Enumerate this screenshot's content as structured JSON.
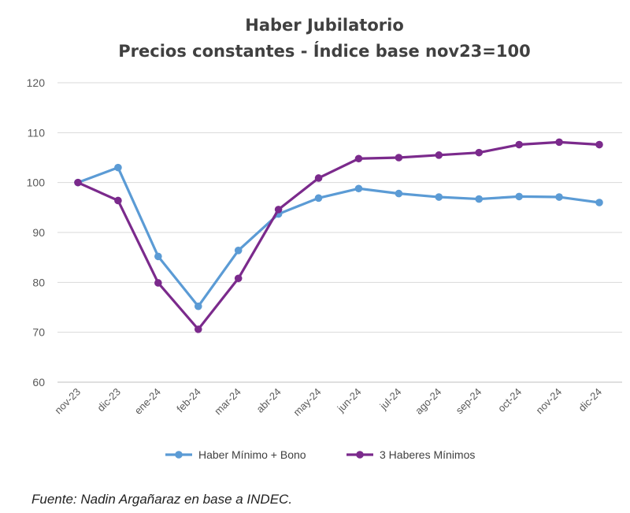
{
  "chart_data": {
    "type": "line",
    "title": "Haber Jubilatorio",
    "subtitle": "Precios constantes - Índice base nov23=100",
    "categories": [
      "nov-23",
      "dic-23",
      "ene-24",
      "feb-24",
      "mar-24",
      "abr-24",
      "may-24",
      "jun-24",
      "jul-24",
      "ago-24",
      "sep-24",
      "oct-24",
      "nov-24",
      "dic-24"
    ],
    "ylim": [
      60,
      120
    ],
    "yticks": [
      60,
      70,
      80,
      90,
      100,
      110,
      120
    ],
    "grid": true,
    "legend_position": "bottom",
    "series": [
      {
        "name": "Haber Mínimo + Bono",
        "color": "#5B9BD5",
        "values": [
          100,
          103,
          85.2,
          75.2,
          86.4,
          93.7,
          96.9,
          98.8,
          97.8,
          97.1,
          96.7,
          97.2,
          97.1,
          96.0
        ]
      },
      {
        "name": "3 Haberes Mínimos",
        "color": "#7B2A8C",
        "values": [
          100,
          96.4,
          79.9,
          70.6,
          80.8,
          94.6,
          100.9,
          104.8,
          105.0,
          105.5,
          106.0,
          107.6,
          108.1,
          107.6
        ]
      }
    ]
  },
  "source_note": "Fuente: Nadin Argañaraz en base a INDEC."
}
